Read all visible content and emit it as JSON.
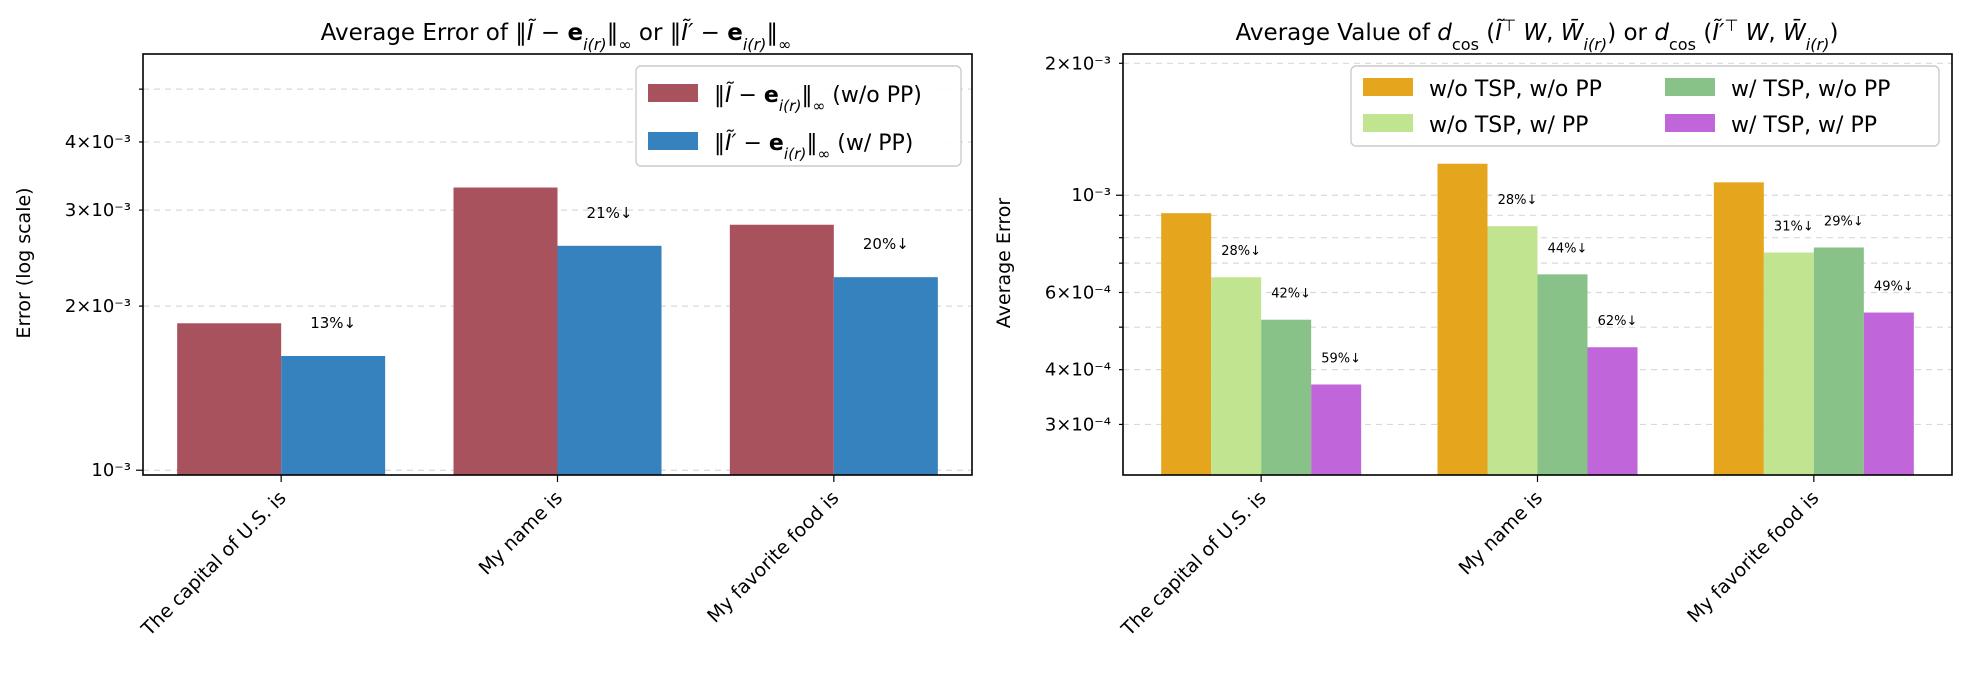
{
  "chart_data": [
    {
      "type": "bar",
      "title": "Average Error of ‖Ĩ − e_i(r)‖∞ or ‖Ĩ′ − e_i(r)‖∞",
      "xlabel": "",
      "ylabel": "Error (log scale)",
      "yscale": "log",
      "ylim": [
        0.00098,
        0.0058
      ],
      "yticks": [
        {
          "value": 0.001,
          "label": "10⁻³"
        },
        {
          "value": 0.002,
          "label": "2×10⁻³"
        },
        {
          "value": 0.003,
          "label": "3×10⁻³"
        },
        {
          "value": 0.004,
          "label": "4×10⁻³"
        }
      ],
      "grid": true,
      "legend_position": "top-right",
      "categories": [
        "The capital of U.S. is",
        "My name is",
        "My favorite food is"
      ],
      "series": [
        {
          "name": "‖Ĩ − e_i(r)‖∞ (w/o PP)",
          "color": "#a8525e",
          "values": [
            0.00186,
            0.0033,
            0.00282
          ]
        },
        {
          "name": "‖Ĩ′ − e_i(r)‖∞ (w/ PP)",
          "color": "#3682be",
          "values": [
            0.00162,
            0.00258,
            0.00226
          ]
        }
      ],
      "annotations": [
        "13%↓",
        "21%↓",
        "20%↓"
      ]
    },
    {
      "type": "bar",
      "title": "Average Value of d_cos(Ĩᵀ W, W̄_i(r)) or d_cos(Ĩ′ᵀ W, W̄_i(r))",
      "xlabel": "",
      "ylabel": "Average Error",
      "yscale": "log",
      "ylim": [
        0.00023,
        0.0021
      ],
      "yticks": [
        {
          "value": 0.0003,
          "label": "3×10⁻⁴"
        },
        {
          "value": 0.0004,
          "label": "4×10⁻⁴"
        },
        {
          "value": 0.0006,
          "label": "6×10⁻⁴"
        },
        {
          "value": 0.001,
          "label": "10⁻³"
        },
        {
          "value": 0.002,
          "label": "2×10⁻³"
        }
      ],
      "grid": true,
      "legend_position": "top-right",
      "categories": [
        "The capital of U.S. is",
        "My name is",
        "My favorite food is"
      ],
      "series": [
        {
          "name": "w/o TSP, w/o PP",
          "color": "#e5a61d",
          "values": [
            0.00091,
            0.00118,
            0.00107
          ]
        },
        {
          "name": "w/o TSP, w/ PP",
          "color": "#c0e48f",
          "values": [
            0.00065,
            0.00085,
            0.00074
          ]
        },
        {
          "name": "w/ TSP, w/o PP",
          "color": "#89c289",
          "values": [
            0.00052,
            0.00066,
            0.00076
          ]
        },
        {
          "name": "w/ TSP, w/ PP",
          "color": "#c066da",
          "values": [
            0.00037,
            0.00045,
            0.00054
          ]
        }
      ],
      "annotations": [
        [
          "28%↓",
          "42%↓",
          "59%↓"
        ],
        [
          "28%↓",
          "44%↓",
          "62%↓"
        ],
        [
          "31%↓",
          "29%↓",
          "49%↓"
        ]
      ]
    }
  ]
}
